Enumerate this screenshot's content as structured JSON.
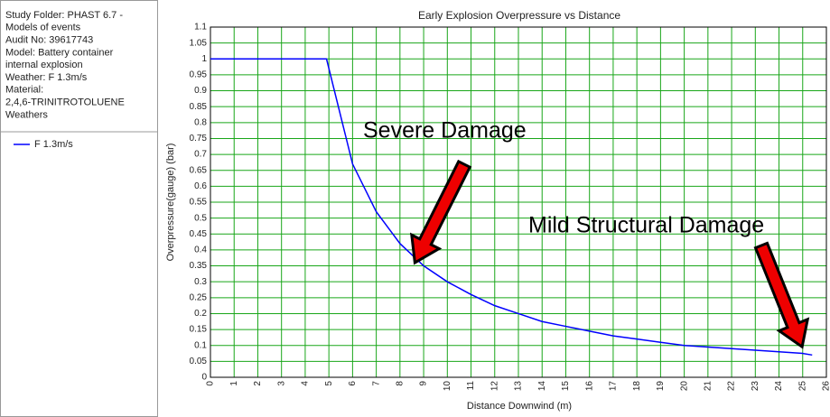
{
  "panel": {
    "lines": [
      "Study Folder: PHAST 6.7 -",
      "Models of events",
      "Audit No: 39617743",
      "Model: Battery container",
      "internal explosion",
      "Weather: F 1.3m/s",
      "Material:",
      "2,4,6-TRINITROTOLUENE",
      "Weathers"
    ]
  },
  "chart_data": {
    "type": "line",
    "title": "Early Explosion Overpressure vs Distance",
    "x_label": "Distance Downwind (m)",
    "y_label": "Overpressure(gauge) (bar)",
    "annotations": [
      "Severe Damage",
      "Mild Structural Damage"
    ],
    "x": [
      0,
      4.9,
      5.5,
      6,
      7,
      8,
      9,
      10,
      11,
      12,
      13,
      14,
      15,
      16,
      17,
      18,
      19,
      20,
      21,
      22,
      23,
      24,
      25,
      25.4
    ],
    "series": [
      {
        "name": "F 1.3m/s",
        "color": "#0000ff",
        "values": [
          1,
          1,
          0.82,
          0.67,
          0.52,
          0.42,
          0.35,
          0.3,
          0.26,
          0.225,
          0.2,
          0.175,
          0.16,
          0.145,
          0.13,
          0.12,
          0.11,
          0.1,
          0.095,
          0.09,
          0.085,
          0.08,
          0.075,
          0.07
        ]
      }
    ],
    "xlim": [
      0,
      26
    ],
    "xticks": [
      0,
      1,
      2,
      3,
      4,
      5,
      6,
      7,
      8,
      9,
      10,
      11,
      12,
      13,
      14,
      15,
      16,
      17,
      18,
      19,
      20,
      21,
      22,
      23,
      24,
      25,
      26
    ],
    "ylim": [
      0,
      1.1
    ],
    "yticks": [
      0,
      0.05,
      0.1,
      0.15,
      0.2,
      0.25,
      0.3,
      0.35,
      0.4,
      0.45,
      0.5,
      0.55,
      0.6,
      0.65,
      0.7,
      0.75,
      0.8,
      0.85,
      0.9,
      0.95,
      1,
      1.05,
      1.1
    ],
    "grid": true,
    "grid_color": "#19a619"
  }
}
